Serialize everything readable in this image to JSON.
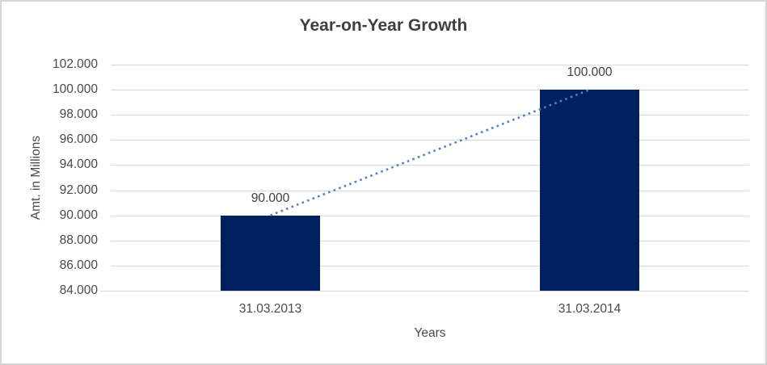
{
  "chart_data": {
    "type": "bar",
    "title": "Year-on-Year Growth",
    "xlabel": "Years",
    "ylabel": "Amt. in Millions",
    "categories": [
      "31.03.2013",
      "31.03.2014"
    ],
    "values": [
      90000,
      100000
    ],
    "data_labels": [
      "90.000",
      "100.000"
    ],
    "ylim": [
      84000,
      102000
    ],
    "ytick_step": 2000,
    "ytick_labels": [
      "84.000",
      "86.000",
      "88.000",
      "90.000",
      "92.000",
      "94.000",
      "96.000",
      "98.000",
      "100.000",
      "102.000"
    ],
    "grid": true,
    "legend": "none",
    "trendline": {
      "style": "dotted",
      "connects": "bar tops",
      "color": "#4e82c3"
    },
    "colors": {
      "bar": "#002060",
      "gridline": "#d9d9d9",
      "title_text": "#3f3f3f",
      "axis_text": "#4a4a4a",
      "border": "#d5d5d5",
      "background": "#ffffff"
    }
  }
}
